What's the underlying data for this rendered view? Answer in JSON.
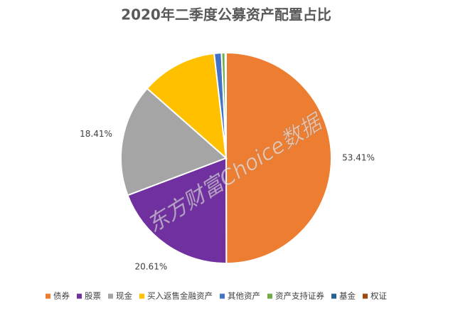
{
  "chart_data": {
    "type": "pie",
    "title": "2020年二季度公募资产配置占比",
    "categories": [
      "债券",
      "股票",
      "现金",
      "买入返售金融资产",
      "其他资产",
      "资产支持证券",
      "基金",
      "权证"
    ],
    "values": [
      53.41,
      20.61,
      18.41,
      12.5,
      1.2,
      0.6,
      0.1,
      0.05
    ],
    "value_labels": [
      "53.41%",
      "20.61%",
      "18.41%",
      null,
      null,
      null,
      null,
      null
    ],
    "colors": [
      "#ED7D31",
      "#7030A0",
      "#A5A5A5",
      "#FFC000",
      "#4472C4",
      "#70AD47",
      "#255E91",
      "#9E480E"
    ],
    "legend": "bottom",
    "watermark": "东方财富Choice数据"
  }
}
